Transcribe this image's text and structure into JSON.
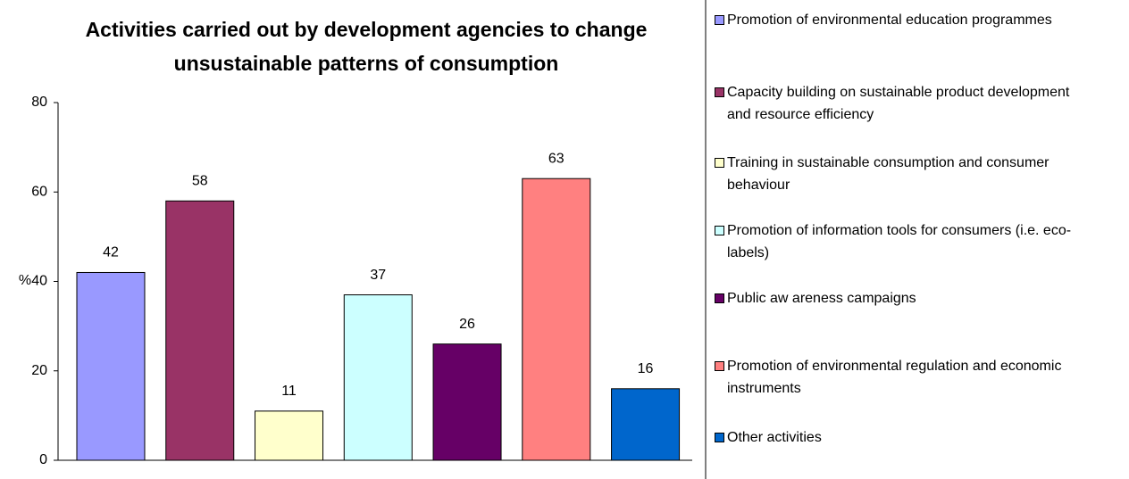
{
  "chart_data": {
    "type": "bar",
    "title": "Activities carried out by development agencies to change unsustainable patterns of consumption",
    "ylabel": "%",
    "categories": [
      null
    ],
    "ylim": [
      0,
      80
    ],
    "yticks": [
      0,
      20,
      40,
      60,
      80
    ],
    "legend": "right",
    "series": [
      {
        "name": "Promotion of environmental education programmes",
        "color": "#9999ff",
        "values": [
          42
        ]
      },
      {
        "name": "Capacity building on sustainable product development and resource efficiency",
        "color": "#993366",
        "values": [
          58
        ]
      },
      {
        "name": "Training in sustainable consumption and consumer behaviour",
        "color": "#ffffcc",
        "values": [
          11
        ]
      },
      {
        "name": "Promotion of information tools for consumers (i.e. eco-labels)",
        "color": "#ccffff",
        "values": [
          37
        ]
      },
      {
        "name": "Public aw areness campaigns",
        "color": "#660066",
        "values": [
          26
        ]
      },
      {
        "name": "Promotion of environmental regulation and economic instruments",
        "color": "#ff8080",
        "values": [
          63
        ]
      },
      {
        "name": "Other activities",
        "color": "#0066cc",
        "values": [
          16
        ]
      }
    ]
  }
}
